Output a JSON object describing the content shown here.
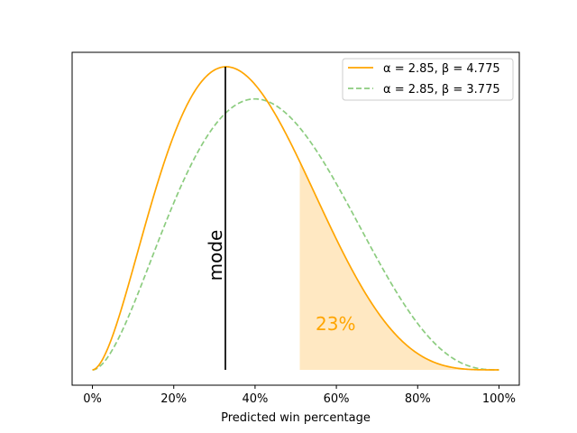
{
  "chart_data": {
    "type": "line",
    "xlabel": "Predicted win percentage",
    "ylabel": "",
    "title": "",
    "xlim": [
      -0.05,
      1.05
    ],
    "x_ticks": [
      0,
      0.2,
      0.4,
      0.6,
      0.8,
      1.0
    ],
    "x_tick_labels": [
      "0%",
      "20%",
      "40%",
      "60%",
      "80%",
      "100%"
    ],
    "y_ticks_visible": false,
    "grid": false,
    "legend_position": "top-right",
    "series": [
      {
        "name": "α = 2.85, β = 4.775",
        "distribution": "beta",
        "alpha": 2.85,
        "beta": 4.775,
        "color": "#ffa500",
        "style": "solid"
      },
      {
        "name": "α = 2.85, β = 3.775",
        "distribution": "beta",
        "alpha": 2.85,
        "beta": 3.775,
        "color": "#8ccc7f",
        "style": "dashed"
      }
    ],
    "annotations": {
      "mode": {
        "label": "mode",
        "x": 0.327,
        "color": "#000000"
      },
      "shaded_tail": {
        "x_from": 0.51,
        "x_to": 1.0,
        "color": "#ffe8c2",
        "label": "23%",
        "label_color": "#ffa500"
      }
    }
  }
}
